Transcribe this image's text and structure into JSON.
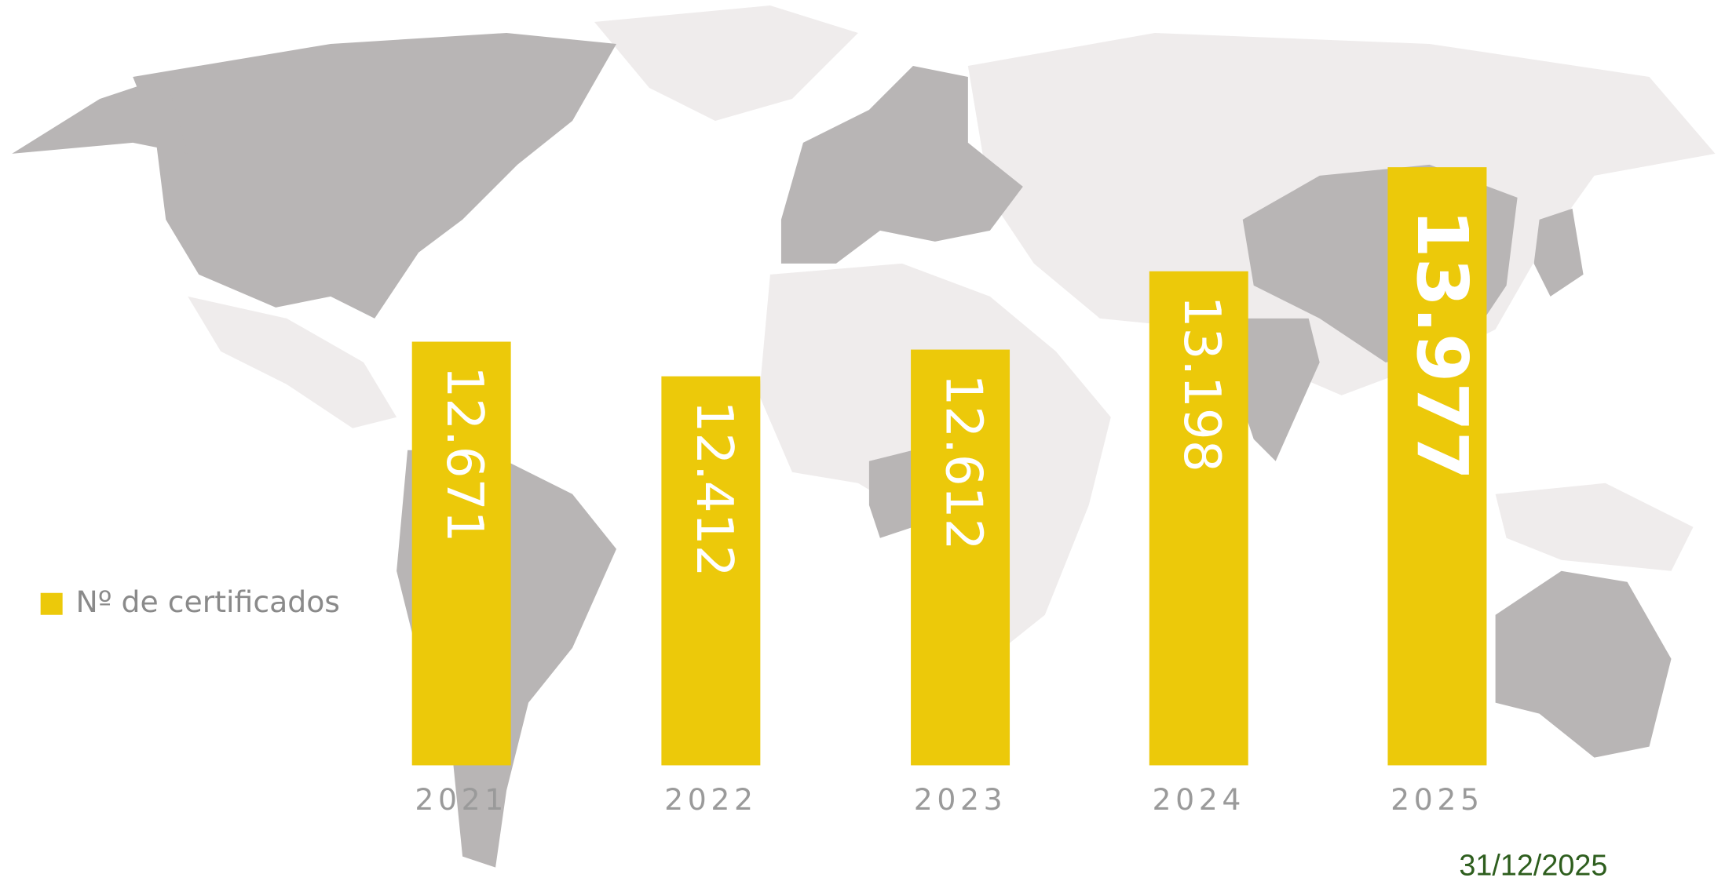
{
  "chart_data": {
    "type": "bar",
    "categories": [
      "2021",
      "2022",
      "2023",
      "2024",
      "2025"
    ],
    "series": [
      {
        "name": "Nº de certificados",
        "color": "#ecc90a",
        "values": [
          12671,
          12412,
          12612,
          13198,
          13977
        ],
        "value_labels": [
          "12.671",
          "12.412",
          "12.612",
          "13.198",
          "13.977"
        ]
      }
    ],
    "ylim": [
      9500,
      14300
    ],
    "annotation": "31/12/2025"
  }
}
